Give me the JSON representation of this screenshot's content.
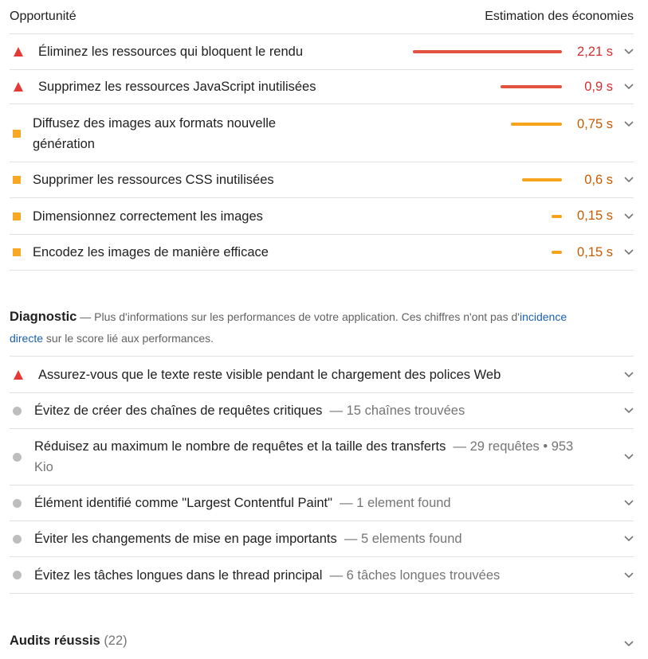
{
  "header": {
    "left": "Opportunité",
    "right": "Estimation des économies"
  },
  "opportunities": [
    {
      "title": "Éliminez les ressources qui bloquent le rendu",
      "value": "2,21 s",
      "severity": "fail",
      "bar_fraction": 1.0
    },
    {
      "title": "Supprimez les ressources JavaScript inutilisées",
      "value": "0,9 s",
      "severity": "fail",
      "bar_fraction": 0.41
    },
    {
      "title": "Diffusez des images aux formats nouvelle génération",
      "value": "0,75 s",
      "severity": "average",
      "bar_fraction": 0.34
    },
    {
      "title": "Supprimer les ressources CSS inutilisées",
      "value": "0,6 s",
      "severity": "average",
      "bar_fraction": 0.27
    },
    {
      "title": "Dimensionnez correctement les images",
      "value": "0,15 s",
      "severity": "average",
      "bar_fraction": 0.07
    },
    {
      "title": "Encodez les images de manière efficace",
      "value": "0,15 s",
      "severity": "average",
      "bar_fraction": 0.07
    }
  ],
  "diagnostic": {
    "title": "Diagnostic",
    "desc_before": " — Plus d'informations sur les performances de votre application. Ces chiffres n'ont pas d'",
    "link": "incidence directe",
    "desc_after": " sur le score lié aux performances.",
    "items": [
      {
        "title": "Assurez-vous que le texte reste visible pendant le chargement des polices Web",
        "sub": "",
        "severity": "fail"
      },
      {
        "title": "Évitez de créer des chaînes de requêtes critiques",
        "sub": "— 15 chaînes trouvées",
        "severity": "info"
      },
      {
        "title": "Réduisez au maximum le nombre de requêtes et la taille des transferts",
        "sub": "— 29 requêtes • 953 Kio",
        "severity": "info"
      },
      {
        "title": "Élément identifié comme \"Largest Contentful Paint\"",
        "sub": "— 1 element found",
        "severity": "info"
      },
      {
        "title": "Éviter les changements de mise en page importants",
        "sub": "— 5 elements found",
        "severity": "info"
      },
      {
        "title": "Évitez les tâches longues dans le thread principal",
        "sub": "— 6 tâches longues trouvées",
        "severity": "info"
      }
    ]
  },
  "passed": {
    "title": "Audits réussis",
    "count": "(22)"
  },
  "colors": {
    "fail": "#e53935",
    "average": "#f9a825",
    "info": "#bdbdbd",
    "link": "#1a5fb4"
  }
}
